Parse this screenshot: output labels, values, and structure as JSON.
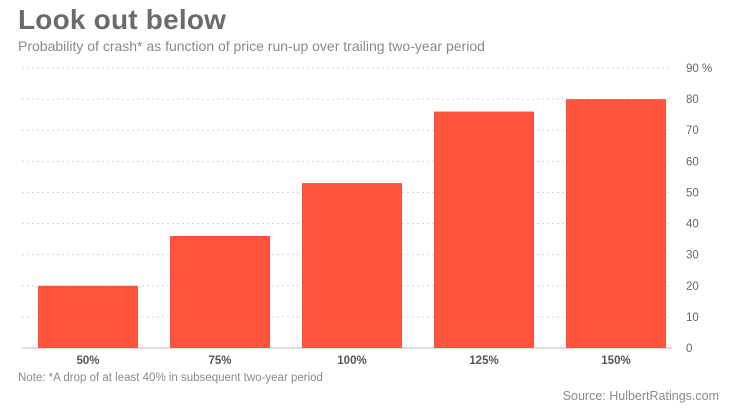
{
  "chart_data": {
    "type": "bar",
    "title": "Look out below",
    "subtitle": "Probability of crash* as function of price run-up over trailing two-year period",
    "categories": [
      "50%",
      "75%",
      "100%",
      "125%",
      "150%"
    ],
    "values": [
      20,
      36,
      53,
      76,
      80
    ],
    "ylim": [
      0,
      90
    ],
    "yticks": [
      0,
      10,
      20,
      30,
      40,
      50,
      60,
      70,
      80,
      90
    ],
    "ytick_labels": [
      "0",
      "10",
      "20",
      "30",
      "40",
      "50",
      "60",
      "70",
      "80",
      "90 %"
    ],
    "ytick_position": "right",
    "grid": true,
    "note": "Note: *A drop of at least 40% in subsequent two-year period",
    "source": "Source: HulbertRatings.com",
    "bar_color": "#ff533d",
    "grid_color": "#d9d9d9"
  }
}
